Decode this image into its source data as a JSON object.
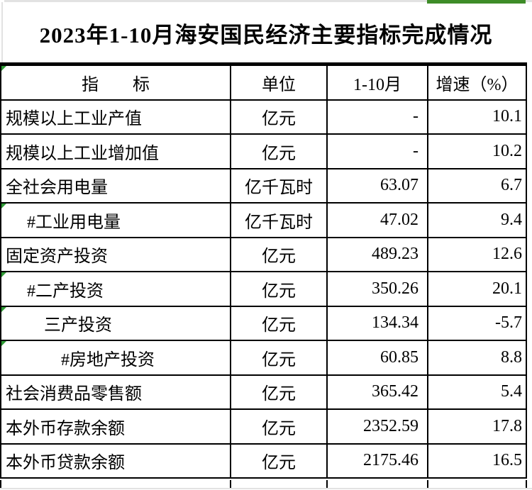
{
  "page": {
    "title": "2023年1-10月海安国民经济主要指标完成情况"
  },
  "decor": {
    "green_strip_color": "#3e8c28",
    "corner_flag_color": "#2f9b35",
    "gridline_color": "#e2e2e2",
    "table_border_color": "#000000"
  },
  "table": {
    "headers": {
      "indicator": "指　　标",
      "unit": "单位",
      "period": "1-10月",
      "growth": "增速（%）"
    },
    "rows": [
      {
        "indicator": "规模以上工业产值",
        "unit": "亿元",
        "value": "-",
        "growth": "10.1",
        "has_marker": false
      },
      {
        "indicator": "规模以上工业增加值",
        "unit": "亿元",
        "value": "-",
        "growth": "10.2",
        "has_marker": false
      },
      {
        "indicator": "全社会用电量",
        "unit": "亿千瓦时",
        "value": "63.07",
        "growth": "6.7",
        "has_marker": false
      },
      {
        "indicator": "　 #工业用电量",
        "unit": "亿千瓦时",
        "value": "47.02",
        "growth": "9.4",
        "has_marker": true
      },
      {
        "indicator": "固定资产投资",
        "unit": "亿元",
        "value": "489.23",
        "growth": "12.6",
        "has_marker": false
      },
      {
        "indicator": "　 #二产投资",
        "unit": "亿元",
        "value": "350.26",
        "growth": "20.1",
        "has_marker": true
      },
      {
        "indicator": "　　 三产投资",
        "unit": "亿元",
        "value": "134.34",
        "growth": "-5.7",
        "has_marker": true
      },
      {
        "indicator": "　　　 #房地产投资",
        "unit": "亿元",
        "value": "60.85",
        "growth": "8.8",
        "has_marker": true
      },
      {
        "indicator": "社会消费品零售额",
        "unit": "亿元",
        "value": "365.42",
        "growth": "5.4",
        "has_marker": false
      },
      {
        "indicator": "本外币存款余额",
        "unit": "亿元",
        "value": "2352.59",
        "growth": "17.8",
        "has_marker": false
      },
      {
        "indicator": "本外币贷款余额",
        "unit": "亿元",
        "value": "2175.46",
        "growth": "16.5",
        "has_marker": false
      }
    ]
  }
}
